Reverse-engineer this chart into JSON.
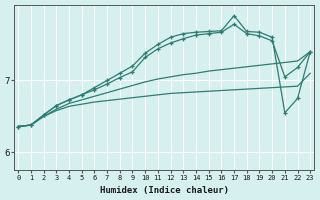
{
  "xlabel": "Humidex (Indice chaleur)",
  "bg_color": "#d6efef",
  "grid_color": "#ffffff",
  "line_color": "#2e7d72",
  "x_ticks": [
    0,
    1,
    2,
    3,
    4,
    5,
    6,
    7,
    8,
    9,
    10,
    11,
    12,
    13,
    14,
    15,
    16,
    17,
    18,
    19,
    20,
    21,
    22,
    23
  ],
  "y_ticks": [
    6,
    7
  ],
  "xlim": [
    -0.3,
    23.3
  ],
  "ylim": [
    5.75,
    8.05
  ],
  "lines": [
    {
      "x": [
        0,
        1,
        2,
        3,
        4,
        5,
        6,
        7,
        8,
        9,
        10,
        11,
        12,
        13,
        14,
        15,
        16,
        17,
        18,
        19,
        20,
        21,
        22,
        23
      ],
      "y": [
        6.36,
        6.38,
        6.5,
        6.58,
        6.64,
        6.67,
        6.7,
        6.72,
        6.74,
        6.76,
        6.78,
        6.8,
        6.82,
        6.83,
        6.84,
        6.85,
        6.86,
        6.87,
        6.88,
        6.89,
        6.9,
        6.91,
        6.92,
        7.1
      ],
      "marker": false
    },
    {
      "x": [
        0,
        1,
        2,
        3,
        4,
        5,
        6,
        7,
        8,
        9,
        10,
        11,
        12,
        13,
        14,
        15,
        16,
        17,
        18,
        19,
        20,
        21,
        22,
        23
      ],
      "y": [
        6.36,
        6.38,
        6.5,
        6.6,
        6.68,
        6.73,
        6.78,
        6.83,
        6.88,
        6.93,
        6.98,
        7.02,
        7.05,
        7.08,
        7.1,
        7.13,
        7.15,
        7.17,
        7.19,
        7.21,
        7.23,
        7.25,
        7.27,
        7.4
      ],
      "marker": false
    },
    {
      "x": [
        0,
        1,
        2,
        3,
        4,
        5,
        6,
        7,
        8,
        9,
        10,
        11,
        12,
        13,
        14,
        15,
        16,
        17,
        18,
        19,
        20,
        21,
        22,
        23
      ],
      "y": [
        6.36,
        6.38,
        6.52,
        6.65,
        6.73,
        6.8,
        6.87,
        6.95,
        7.04,
        7.12,
        7.32,
        7.44,
        7.52,
        7.58,
        7.63,
        7.65,
        7.67,
        7.78,
        7.65,
        7.62,
        7.55,
        7.05,
        7.18,
        7.4
      ],
      "marker": true
    },
    {
      "x": [
        0,
        1,
        2,
        3,
        4,
        5,
        6,
        7,
        8,
        9,
        10,
        11,
        12,
        13,
        14,
        15,
        16,
        17,
        18,
        19,
        20,
        21,
        22,
        23
      ],
      "y": [
        6.36,
        6.38,
        6.52,
        6.65,
        6.73,
        6.8,
        6.9,
        7.0,
        7.1,
        7.2,
        7.38,
        7.5,
        7.6,
        7.65,
        7.67,
        7.68,
        7.69,
        7.9,
        7.68,
        7.67,
        7.6,
        6.55,
        6.75,
        7.4
      ],
      "marker": true
    }
  ]
}
